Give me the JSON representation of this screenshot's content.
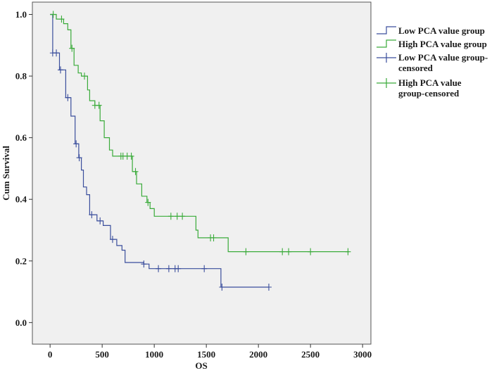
{
  "chart_data": {
    "type": "line",
    "subtype": "kaplan-meier step",
    "xlabel": "OS",
    "ylabel": "Cum Survival",
    "xlim": [
      -170,
      3080
    ],
    "ylim": [
      -0.07,
      1.04
    ],
    "x_ticks": [
      0,
      500,
      1000,
      1500,
      2000,
      2500,
      3000
    ],
    "y_ticks": [
      0.0,
      0.2,
      0.4,
      0.6,
      0.8,
      1.0
    ],
    "y_tick_labels": [
      "0.0",
      "0.2",
      "0.4",
      "0.6",
      "0.8",
      "1.0"
    ],
    "grid": false,
    "plot_background": "#f0f0f0",
    "legend_position": "right-outside-top",
    "series": [
      {
        "name": "Low PCA value group",
        "color": "#3a4e9c",
        "steps": [
          [
            0,
            1.0
          ],
          [
            25,
            0.875
          ],
          [
            90,
            0.82
          ],
          [
            150,
            0.73
          ],
          [
            200,
            0.67
          ],
          [
            240,
            0.58
          ],
          [
            275,
            0.535
          ],
          [
            300,
            0.495
          ],
          [
            320,
            0.44
          ],
          [
            350,
            0.415
          ],
          [
            380,
            0.35
          ],
          [
            450,
            0.33
          ],
          [
            510,
            0.315
          ],
          [
            580,
            0.27
          ],
          [
            640,
            0.25
          ],
          [
            690,
            0.235
          ],
          [
            720,
            0.195
          ],
          [
            900,
            0.19
          ],
          [
            950,
            0.175
          ],
          [
            1640,
            0.115
          ],
          [
            2100,
            0.115
          ]
        ],
        "censored": [
          25,
          60,
          100,
          170,
          250,
          280,
          400,
          480,
          600,
          900,
          1040,
          1140,
          1200,
          1230,
          1480,
          1650,
          2100
        ]
      },
      {
        "name": "High PCA value group",
        "color": "#3aab3a",
        "steps": [
          [
            0,
            1.0
          ],
          [
            60,
            0.985
          ],
          [
            130,
            0.97
          ],
          [
            170,
            0.95
          ],
          [
            200,
            0.89
          ],
          [
            230,
            0.835
          ],
          [
            270,
            0.81
          ],
          [
            300,
            0.8
          ],
          [
            360,
            0.755
          ],
          [
            380,
            0.72
          ],
          [
            430,
            0.705
          ],
          [
            480,
            0.655
          ],
          [
            520,
            0.6
          ],
          [
            570,
            0.56
          ],
          [
            600,
            0.54
          ],
          [
            790,
            0.49
          ],
          [
            830,
            0.45
          ],
          [
            880,
            0.41
          ],
          [
            930,
            0.39
          ],
          [
            960,
            0.37
          ],
          [
            1000,
            0.345
          ],
          [
            1400,
            0.3
          ],
          [
            1420,
            0.275
          ],
          [
            1660,
            0.275
          ],
          [
            1710,
            0.23
          ],
          [
            2870,
            0.23
          ]
        ],
        "censored": [
          30,
          110,
          210,
          330,
          430,
          470,
          680,
          700,
          740,
          780,
          820,
          940,
          1160,
          1220,
          1270,
          1540,
          1570,
          1880,
          2230,
          2290,
          2500,
          2860
        ]
      }
    ],
    "legend": [
      {
        "key": "low",
        "lines": [
          "Low PCA value group"
        ],
        "color": "#3a4e9c",
        "marker": "line"
      },
      {
        "key": "high",
        "lines": [
          "High PCA value group"
        ],
        "color": "#3aab3a",
        "marker": "line"
      },
      {
        "key": "low-censored",
        "lines": [
          "Low PCA value group-",
          "censored"
        ],
        "color": "#3a4e9c",
        "marker": "plus"
      },
      {
        "key": "high-censored",
        "lines": [
          "High PCA value",
          "group-censored"
        ],
        "color": "#3aab3a",
        "marker": "plus"
      }
    ]
  }
}
